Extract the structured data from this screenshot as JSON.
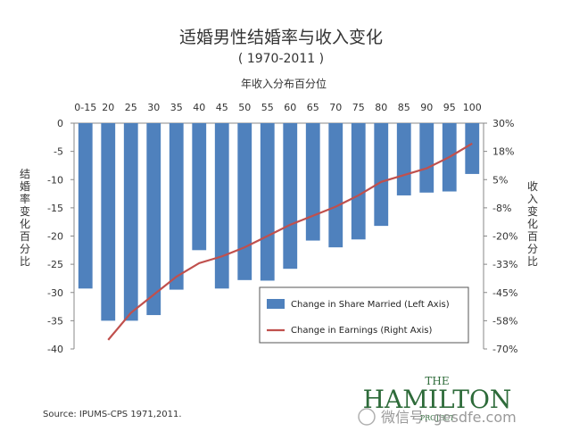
{
  "header": {
    "title": "适婚男性结婚率与收入变化",
    "subtitle": "( 1970-2011 )",
    "top_axis_title": "年收入分布百分位"
  },
  "left_axis_title": "结婚率变化百分比",
  "right_axis_title": "收入变化百分比",
  "source": "Source: IPUMS-CPS 1971,2011.",
  "logo": {
    "the": "THE",
    "name": "HAMILTON",
    "sub": "PROJECT"
  },
  "watermark": "微信号: gesdfe.com",
  "colors": {
    "bar": "#4f81bd",
    "line": "#c0504d"
  },
  "chart_data": {
    "type": "bar",
    "categories": [
      "0-15",
      "20",
      "25",
      "30",
      "35",
      "40",
      "45",
      "50",
      "55",
      "60",
      "65",
      "70",
      "75",
      "80",
      "85",
      "90",
      "95",
      "100"
    ],
    "series": [
      {
        "name": "Change in Share Married (Left Axis)",
        "axis": "left",
        "type": "bar",
        "values": [
          -29.3,
          -35.0,
          -35.0,
          -34.0,
          -29.5,
          -22.5,
          -29.3,
          -27.8,
          -27.9,
          -25.8,
          -20.8,
          -22.0,
          -20.6,
          -18.2,
          -12.8,
          -12.3,
          -12.1,
          -9.0
        ]
      },
      {
        "name": "Change in Earnings (Right Axis)",
        "axis": "right",
        "type": "line",
        "values": [
          null,
          -66,
          -54,
          -46,
          -38,
          -32,
          -29,
          -25,
          -20,
          -15,
          -11,
          -7,
          -2,
          4,
          7,
          10,
          15,
          21
        ]
      }
    ],
    "left_axis": {
      "ticks": [
        0,
        -5,
        -10,
        -15,
        -20,
        -25,
        -30,
        -35,
        -40
      ],
      "ylim": [
        -40,
        0
      ]
    },
    "right_axis": {
      "ticks": [
        "30%",
        "18%",
        "5%",
        "-8%",
        "-20%",
        "-33%",
        "-45%",
        "-58%",
        "-70%"
      ],
      "ylim": [
        -70,
        30
      ]
    },
    "legend": {
      "placement": "bottom-right"
    },
    "grid": false
  }
}
